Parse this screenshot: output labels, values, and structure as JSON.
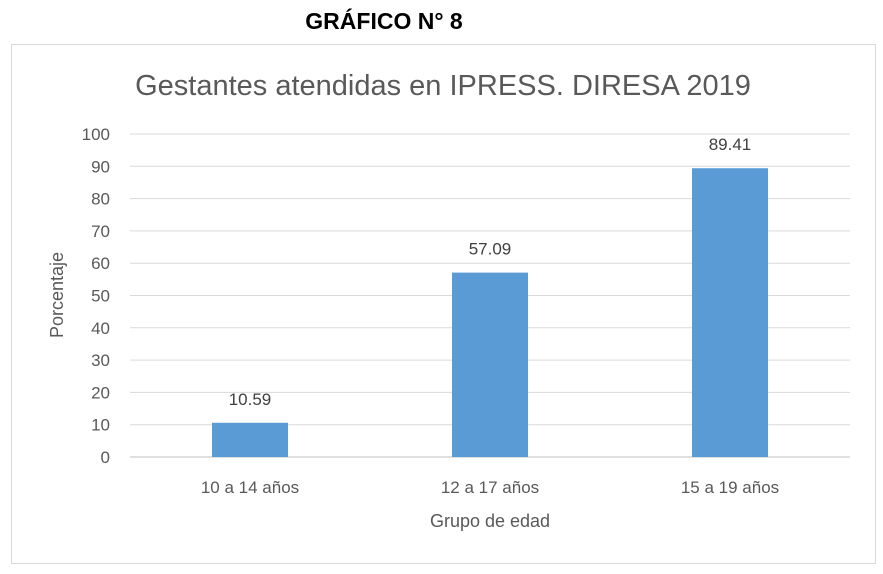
{
  "heading": "GRÁFICO N° 8",
  "chart_data": {
    "type": "bar",
    "title": "Gestantes atendidas en IPRESS. DIRESA 2019",
    "xlabel": "Grupo de edad",
    "ylabel": "Porcentaje",
    "categories": [
      "10 a 14 años",
      "12 a 17 años",
      "15 a 19 años"
    ],
    "values": [
      10.59,
      57.09,
      89.41
    ],
    "value_labels": [
      "10.59",
      "57.09",
      "89.41"
    ],
    "ylim": [
      0,
      100
    ],
    "yticks": [
      "0",
      "10",
      "20",
      "30",
      "40",
      "50",
      "60",
      "70",
      "80",
      "90",
      "100"
    ],
    "grid": true,
    "legend": "none",
    "bar_color": "#5b9bd5"
  }
}
